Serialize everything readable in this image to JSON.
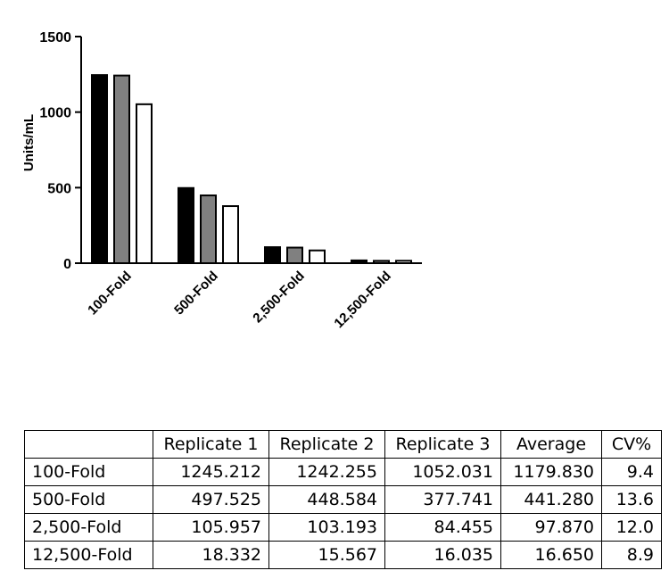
{
  "chart_data": {
    "type": "bar",
    "categories": [
      "100-Fold",
      "500-Fold",
      "2,500-Fold",
      "12,500-Fold"
    ],
    "series": [
      {
        "values": [
          1245.212,
          497.525,
          105.957,
          18.332
        ],
        "color": "#000000"
      },
      {
        "values": [
          1242.255,
          448.584,
          103.193,
          15.567
        ],
        "color": "#808080"
      },
      {
        "values": [
          1052.031,
          377.741,
          84.455,
          16.035
        ],
        "color": "#ffffff"
      }
    ],
    "ylabel": "Units/mL",
    "ylim": [
      0,
      1500
    ],
    "yticks": [
      "0",
      "500",
      "1000",
      "1500"
    ],
    "grid": false,
    "legend": "none"
  },
  "table": {
    "headers": [
      "",
      "Replicate 1",
      "Replicate 2",
      "Replicate 3",
      "Average",
      "CV%"
    ],
    "rows": [
      [
        "100-Fold",
        "1245.212",
        "1242.255",
        "1052.031",
        "1179.830",
        "9.4"
      ],
      [
        "500-Fold",
        "497.525",
        "448.584",
        "377.741",
        "441.280",
        "13.6"
      ],
      [
        "2,500-Fold",
        "105.957",
        "103.193",
        "84.455",
        "97.870",
        "12.0"
      ],
      [
        "12,500-Fold",
        "18.332",
        "15.567",
        "16.035",
        "16.650",
        "8.9"
      ]
    ]
  }
}
